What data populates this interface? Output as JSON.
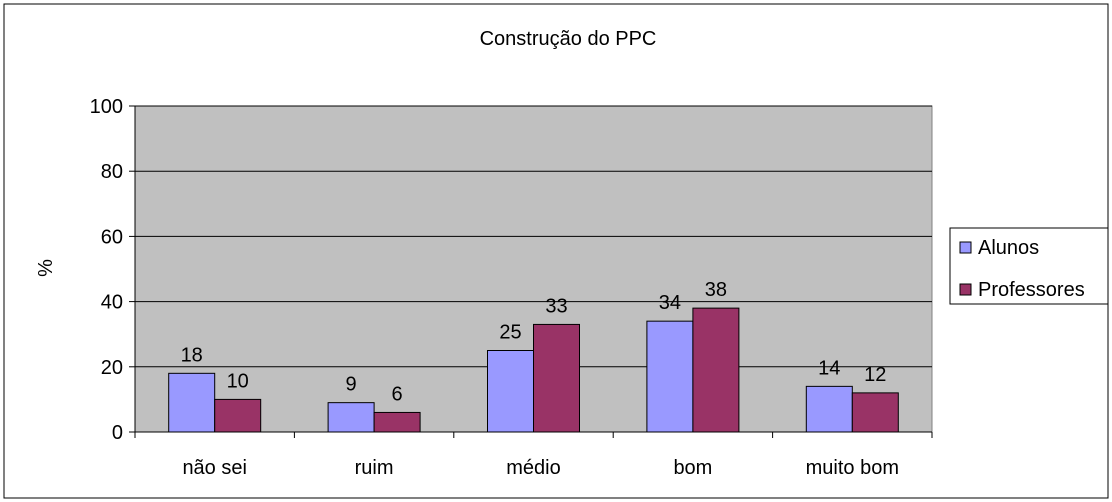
{
  "chart_data": {
    "type": "bar",
    "title": "Construção do PPC",
    "xlabel": "",
    "ylabel": "%",
    "categories": [
      "não sei",
      "ruim",
      "médio",
      "bom",
      "muito bom"
    ],
    "series": [
      {
        "name": "Alunos",
        "values": [
          18,
          9,
          25,
          34,
          14
        ],
        "color": "#9999FF"
      },
      {
        "name": "Professores",
        "values": [
          10,
          6,
          33,
          38,
          12
        ],
        "color": "#993366"
      }
    ],
    "ylim": [
      0,
      100
    ],
    "yticks": [
      0,
      20,
      40,
      60,
      80,
      100
    ],
    "grid": true,
    "legend": "right",
    "plot_background": "#C0C0C0"
  }
}
